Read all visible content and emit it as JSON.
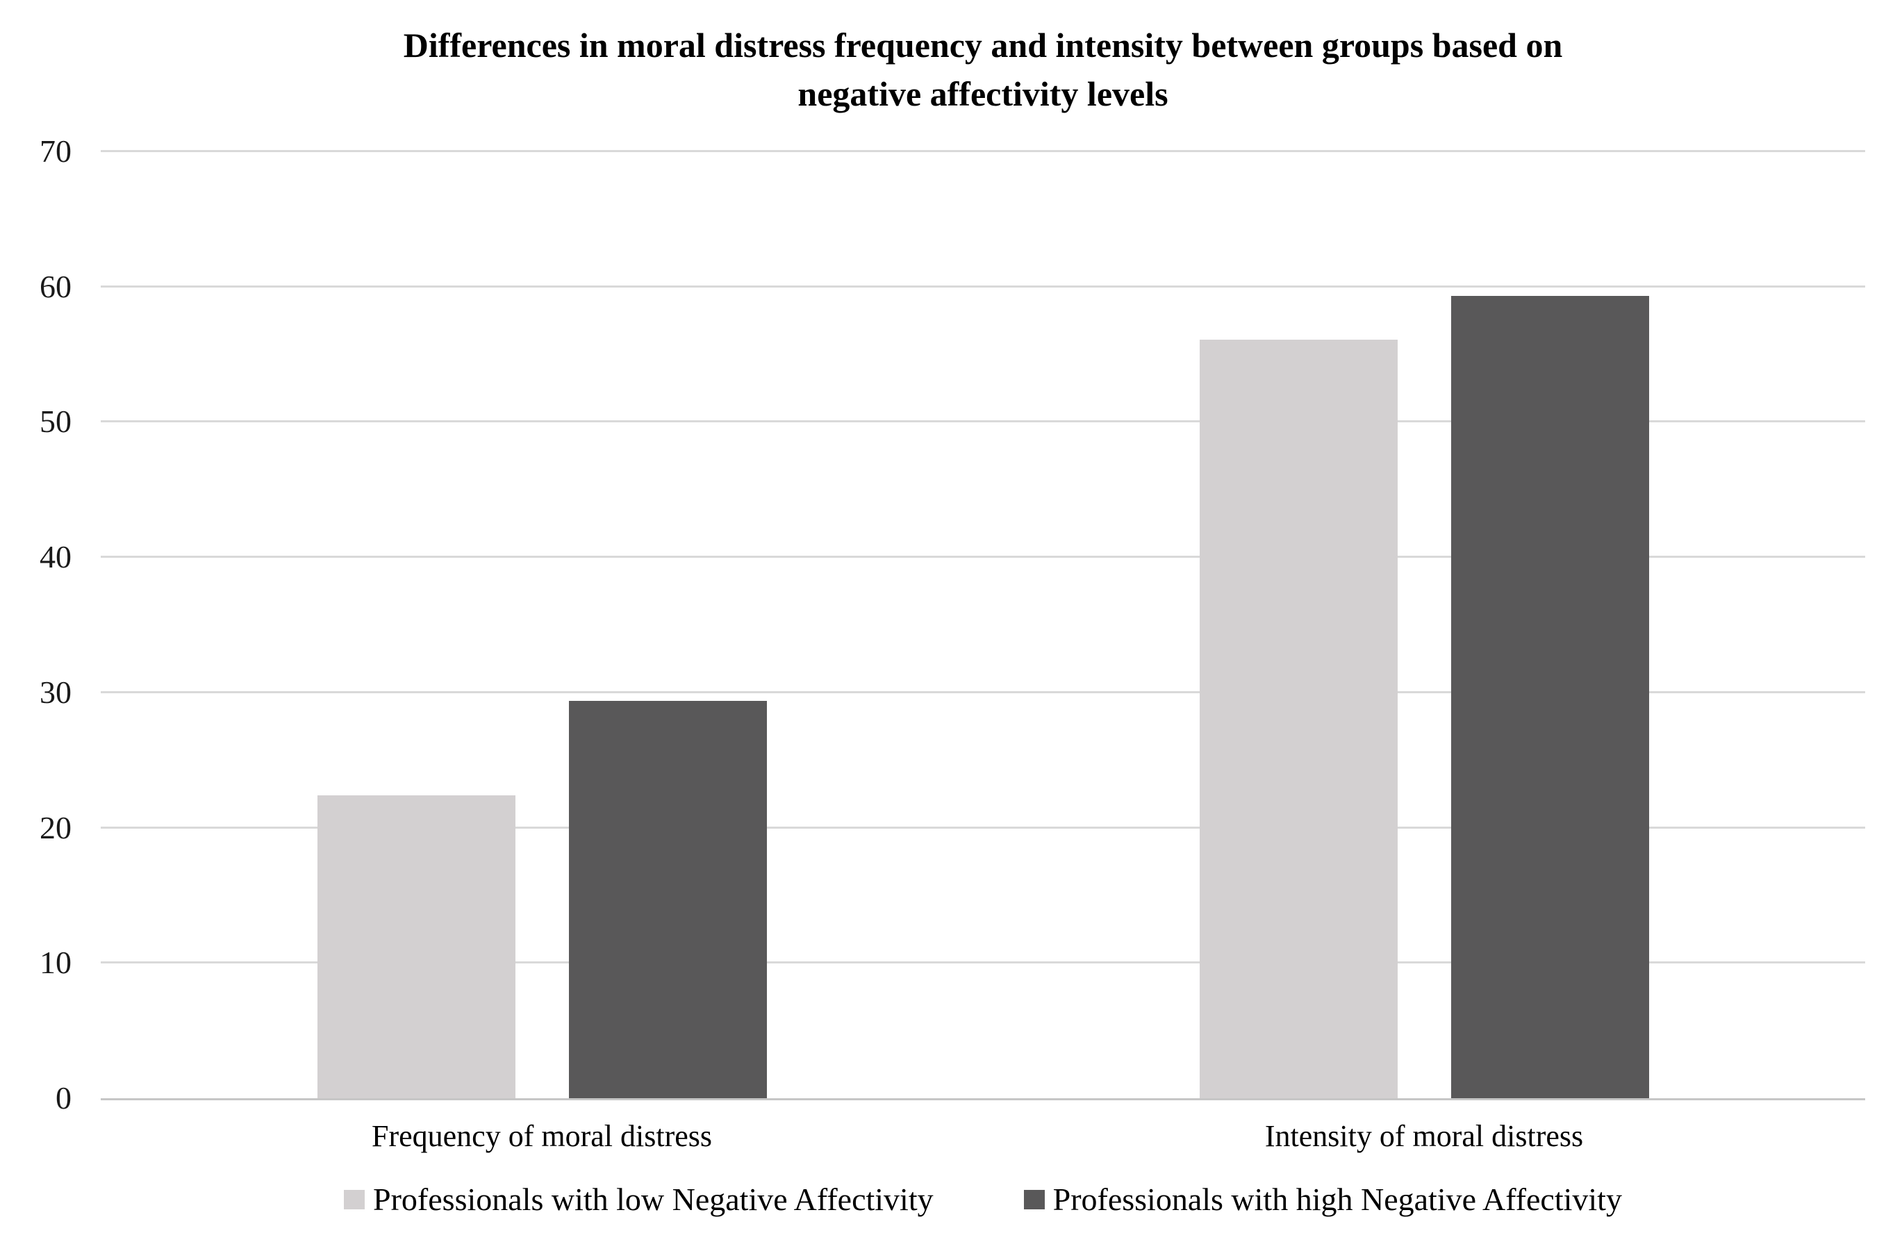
{
  "chart_data": {
    "type": "bar",
    "title": "Differences in moral distress frequency and intensity between groups based on negative affectivity levels",
    "title_lines": [
      "Differences in moral distress frequency and intensity between groups based on",
      "negative affectivity levels"
    ],
    "categories": [
      "Frequency of moral distress",
      "Intensity of moral distress"
    ],
    "series": [
      {
        "name": "Professionals with low Negative Affectivity",
        "color": "#d3d0d1",
        "values": [
          22.4,
          56.1
        ]
      },
      {
        "name": "Professionals with high Negative Affectivity",
        "color": "#595859",
        "values": [
          29.4,
          59.3
        ]
      }
    ],
    "xlabel": "",
    "ylabel": "",
    "ylim": [
      0,
      70
    ],
    "yticks": [
      0,
      10,
      20,
      30,
      40,
      50,
      60,
      70
    ],
    "grid": true,
    "gridline_color": "#d9d9d9",
    "axis_line_color": "#c6c6c6",
    "legend_position": "bottom",
    "background": "#ffffff"
  }
}
